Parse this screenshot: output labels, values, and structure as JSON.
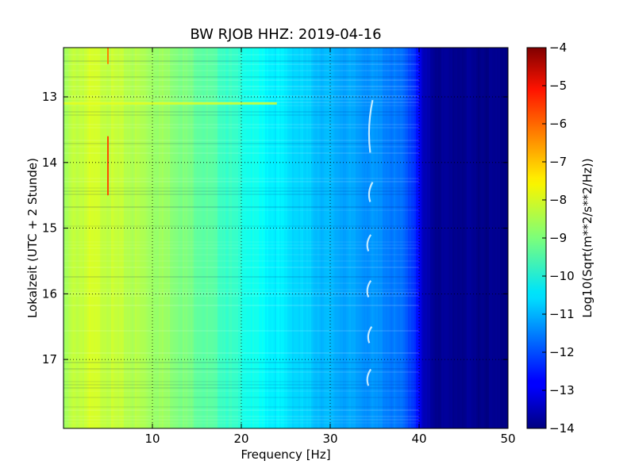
{
  "chart_data": {
    "type": "heatmap",
    "title": "BW RJOB HHZ: 2019-04-16",
    "xlabel": "Frequency [Hz]",
    "ylabel": "Lokalzeit (UTC + 2 Stunde)",
    "xlim": [
      0,
      50
    ],
    "ylim": [
      12.25,
      18.05
    ],
    "y_inverted": true,
    "x_ticks": [
      10,
      20,
      30,
      40,
      50
    ],
    "y_ticks": [
      13,
      14,
      15,
      16,
      17
    ],
    "grid": true,
    "colorbar": {
      "label": "Log10(Sqrt(m**2/s**2/Hz))",
      "min": -14,
      "max": -4,
      "ticks": [
        -4,
        -5,
        -6,
        -7,
        -8,
        -9,
        -10,
        -11,
        -12,
        -13,
        -14
      ],
      "colormap": "jet"
    },
    "spectrum_profile": {
      "frequency_hz": [
        0,
        1,
        3,
        5,
        8,
        12,
        15,
        18,
        20,
        22,
        25,
        28,
        30,
        33,
        36,
        38,
        39.5,
        40.5,
        42,
        50
      ],
      "log10_amplitude": [
        -8.8,
        -8.4,
        -8.2,
        -8.3,
        -8.5,
        -8.8,
        -9.2,
        -9.6,
        -9.9,
        -10.2,
        -10.5,
        -10.8,
        -11.0,
        -11.2,
        -11.4,
        -11.7,
        -12.2,
        -13.5,
        -13.8,
        -13.9
      ]
    },
    "features": [
      {
        "kind": "vertical_line",
        "frequency_hz": 5.0,
        "time_start": 12.25,
        "time_end": 12.5,
        "log10_amplitude": -6.5
      },
      {
        "kind": "vertical_line",
        "frequency_hz": 5.0,
        "time_start": 13.6,
        "time_end": 14.5,
        "log10_amplitude": -6.0
      },
      {
        "kind": "horizontal_band",
        "time": 13.1,
        "freq_start": 0,
        "freq_end": 24,
        "log10_amplitude": -8.0
      }
    ],
    "events": [
      {
        "time_start": 13.05,
        "time_end": 13.85,
        "freq_hz": 34.5
      },
      {
        "time_start": 14.3,
        "time_end": 14.6,
        "freq_hz": 34.5
      },
      {
        "time_start": 15.1,
        "time_end": 15.35,
        "freq_hz": 34.3
      },
      {
        "time_start": 15.8,
        "time_end": 16.05,
        "freq_hz": 34.3
      },
      {
        "time_start": 16.5,
        "time_end": 16.75,
        "freq_hz": 34.4
      },
      {
        "time_start": 17.15,
        "time_end": 17.4,
        "freq_hz": 34.3
      }
    ]
  }
}
